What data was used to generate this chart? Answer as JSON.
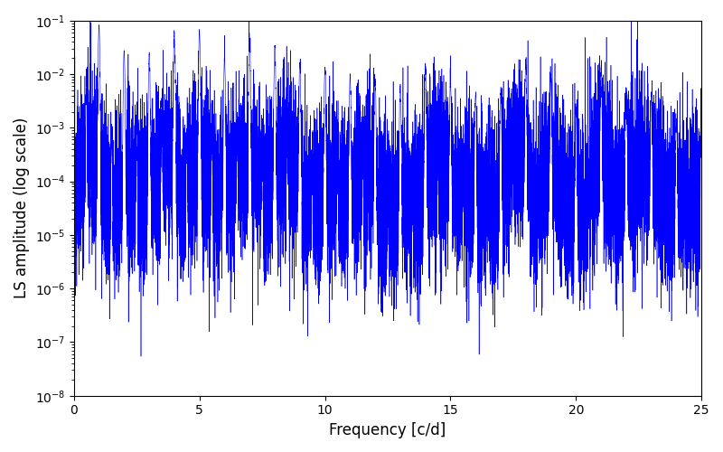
{
  "xlabel": "Frequency [c/d]",
  "ylabel": "LS amplitude (log scale)",
  "xlim": [
    0,
    25
  ],
  "ylim_log": [
    -8,
    -1
  ],
  "line_color": "#0000FF",
  "background_color": "#ffffff",
  "figsize": [
    8.0,
    5.0
  ],
  "dpi": 100,
  "seed": 12345,
  "n_points": 15000,
  "freq_max": 25.0
}
